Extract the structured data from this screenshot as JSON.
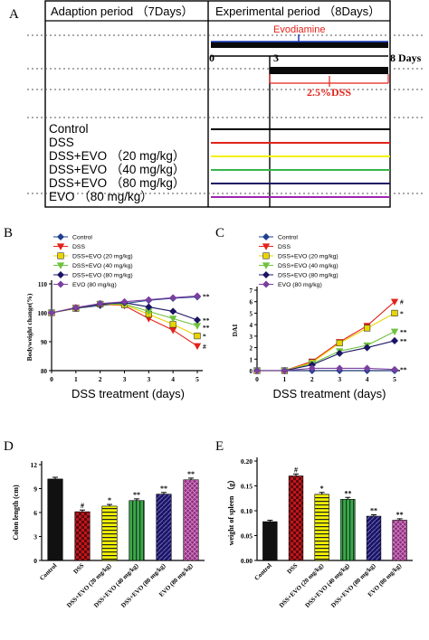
{
  "panel_labels": {
    "a": "A",
    "b": "B",
    "c": "C",
    "d": "D",
    "e": "E"
  },
  "panel_a": {
    "adaption_label": "Adaption period （7Days）",
    "experimental_label": "Experimental period （8Days）",
    "evodiamine_label": "Evodiamine",
    "dss_label": "2.5%DSS",
    "tick_0": "0",
    "tick_3": "3",
    "tick_8": "8 Days",
    "groups": [
      {
        "name": "Control",
        "color": "#000000"
      },
      {
        "name": "DSS",
        "color": "#e2231a"
      },
      {
        "name": "DSS+EVO （20 mg/kg）",
        "color": "#f2f200"
      },
      {
        "name": "DSS+EVO （40 mg/kg）",
        "color": "#39b54a"
      },
      {
        "name": "DSS+EVO （80 mg/kg）",
        "color": "#1b1464"
      },
      {
        "name": "EVO （80 mg/kg）",
        "color": "#9b27b0"
      }
    ],
    "accent_red": "#e2231a"
  },
  "chart_data": [
    {
      "type": "line",
      "panel": "B",
      "xlabel": "DSS treatment (days)",
      "ylabel": "Bodyweight change(%)",
      "x_ticks": [
        "0",
        "1",
        "2",
        "3",
        "3",
        "4",
        "5"
      ],
      "y_ticks": [
        "80",
        "90",
        "100",
        "110"
      ],
      "ylim": [
        80,
        110
      ],
      "legend": [
        "Control",
        "DSS",
        "DSS+EVO (20 mg/kg)",
        "DSS+EVO (40 mg/kg)",
        "DSS+EVO (80 mg/kg)",
        "EVO (80 mg/kg)"
      ],
      "series": [
        {
          "name": "Control",
          "color": "#1f3f8f",
          "marker": "diamond",
          "values": [
            100,
            101.5,
            102.5,
            103.2,
            104.3,
            105,
            105.5
          ]
        },
        {
          "name": "DSS",
          "color": "#e2231a",
          "marker": "tri",
          "values": [
            100,
            101.8,
            103,
            102.5,
            98,
            94,
            88.5
          ]
        },
        {
          "name": "DSS+EVO (20 mg/kg)",
          "color": "#e8d400",
          "marker": "square",
          "values": [
            100,
            101.5,
            103,
            102.8,
            99.5,
            96,
            92
          ]
        },
        {
          "name": "DSS+EVO (40 mg/kg)",
          "color": "#6ec23f",
          "marker": "tri",
          "values": [
            100,
            101.6,
            103,
            103,
            100.5,
            98,
            95.5
          ]
        },
        {
          "name": "DSS+EVO (80 mg/kg)",
          "color": "#1b1464",
          "marker": "diamond",
          "values": [
            100,
            101.6,
            103,
            103.5,
            102,
            100.5,
            97.5
          ]
        },
        {
          "name": "EVO (80 mg/kg)",
          "color": "#7b3fa0",
          "marker": "diamond",
          "values": [
            100,
            101.8,
            103.2,
            103.8,
            104.5,
            105.2,
            105.8
          ]
        }
      ],
      "annotations": [
        {
          "text": "**",
          "series": "EVO (80 mg/kg)"
        },
        {
          "text": "**",
          "series": "DSS+EVO (80 mg/kg)"
        },
        {
          "text": "**",
          "series": "DSS+EVO (40 mg/kg)"
        },
        {
          "text": "*",
          "series": "DSS+EVO (20 mg/kg)"
        },
        {
          "text": "#",
          "series": "DSS"
        }
      ]
    },
    {
      "type": "line",
      "panel": "C",
      "xlabel": "DSS treatment (days)",
      "ylabel": "DAI",
      "x_ticks": [
        "0",
        "1",
        "2",
        "3",
        "4",
        "5"
      ],
      "y_ticks": [
        "0",
        "1",
        "2",
        "3",
        "4",
        "5",
        "6",
        "7"
      ],
      "ylim": [
        0,
        7
      ],
      "legend": [
        "Control",
        "DSS",
        "DSS+EVO (20 mg/kg)",
        "DSS+EVO (40 mg/kg)",
        "DSS+EVO (80 mg/kg)",
        "EVO (80 mg/kg)"
      ],
      "series": [
        {
          "name": "Control",
          "color": "#1f3f8f",
          "marker": "diamond",
          "values": [
            0,
            0,
            0,
            0,
            0,
            0
          ]
        },
        {
          "name": "DSS",
          "color": "#e2231a",
          "marker": "tri",
          "values": [
            0,
            0,
            0.8,
            2.5,
            3.9,
            6.0
          ]
        },
        {
          "name": "DSS+EVO (20 mg/kg)",
          "color": "#e8d400",
          "marker": "square",
          "values": [
            0,
            0,
            0.7,
            2.4,
            3.7,
            5.0
          ]
        },
        {
          "name": "DSS+EVO (40 mg/kg)",
          "color": "#6ec23f",
          "marker": "tri",
          "values": [
            0,
            0,
            0.6,
            1.7,
            2.2,
            3.4
          ]
        },
        {
          "name": "DSS+EVO (80 mg/kg)",
          "color": "#1b1464",
          "marker": "diamond",
          "values": [
            0,
            0,
            0.5,
            1.5,
            2.0,
            2.6
          ]
        },
        {
          "name": "EVO (80 mg/kg)",
          "color": "#7b3fa0",
          "marker": "diamond",
          "values": [
            0,
            0,
            0.2,
            0.2,
            0.2,
            0.1
          ]
        }
      ],
      "annotations": [
        {
          "text": "#",
          "series": "DSS"
        },
        {
          "text": "*",
          "series": "DSS+EVO (20 mg/kg)"
        },
        {
          "text": "**",
          "series": "DSS+EVO (40 mg/kg)"
        },
        {
          "text": "**",
          "series": "DSS+EVO (80 mg/kg)"
        },
        {
          "text": "**",
          "series": "EVO (80 mg/kg)"
        }
      ]
    },
    {
      "type": "bar",
      "panel": "D",
      "ylabel": "Colon length (cm)",
      "categories": [
        "Control",
        "DSS",
        "DSS+EVO (20 mg/kg)",
        "DSS+EVO (40 mg/kg)",
        "DSS+EVO (80 mg/kg)",
        "EVO (80 mg/kg)"
      ],
      "values": [
        10.2,
        6.1,
        6.8,
        7.5,
        8.3,
        10.1
      ],
      "errors": [
        0.1,
        0.1,
        0.1,
        0.1,
        0.1,
        0.1
      ],
      "labels": [
        "",
        "#",
        "*",
        "**",
        "**",
        "**"
      ],
      "colors": [
        "#111111",
        "#c0161c",
        "#f2f200",
        "#3aa84a",
        "#1b1464",
        "#8e2a7e"
      ],
      "patterns": [
        "solid",
        "check",
        "hstripe",
        "vstripe",
        "hatch",
        "crosshatch"
      ],
      "y_ticks": [
        "0",
        "3",
        "6",
        "9",
        "12"
      ],
      "ylim": [
        0,
        12
      ]
    },
    {
      "type": "bar",
      "panel": "E",
      "ylabel": "weight of spleen （g）",
      "categories": [
        "Control",
        "DSS",
        "DSS+EVO (20 mg/kg)",
        "DSS+EVO (40 mg/kg)",
        "DSS+EVO (80 mg/kg)",
        "EVO (80 mg/kg)"
      ],
      "values": [
        0.078,
        0.17,
        0.133,
        0.123,
        0.089,
        0.081
      ],
      "errors": [
        0.001,
        0.002,
        0.002,
        0.002,
        0.001,
        0.001
      ],
      "labels": [
        "",
        "#",
        "*",
        "**",
        "**",
        "**"
      ],
      "colors": [
        "#111111",
        "#c0161c",
        "#f2f200",
        "#3aa84a",
        "#1b1464",
        "#8e2a7e"
      ],
      "patterns": [
        "solid",
        "check",
        "hstripe",
        "vstripe",
        "hatch",
        "crosshatch"
      ],
      "y_ticks": [
        "0.00",
        "0.05",
        "0.10",
        "0.15",
        "0.20"
      ],
      "ylim": [
        0,
        0.2
      ]
    }
  ]
}
